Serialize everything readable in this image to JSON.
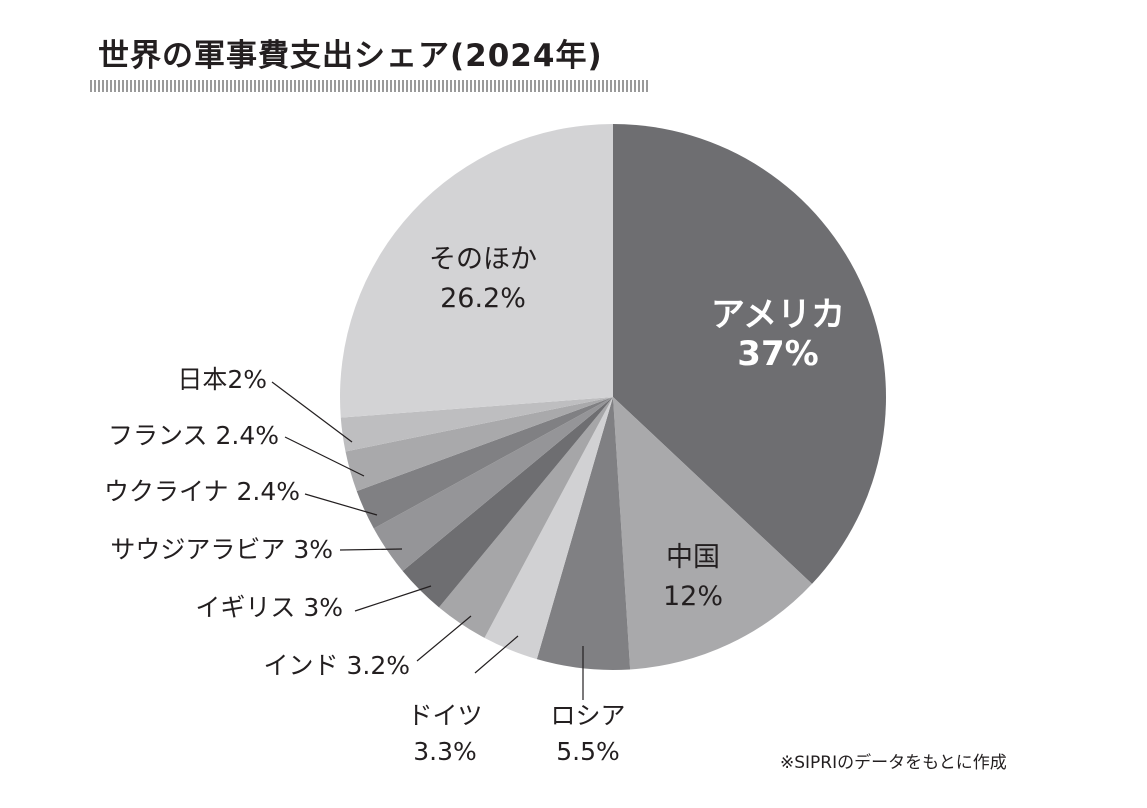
{
  "title": "世界の軍事費支出シェア(2024年)",
  "note": "※SIPRIのデータをもとに作成",
  "chart_data": {
    "type": "pie",
    "title": "世界の軍事費支出シェア(2024年)",
    "start": "top",
    "direction": "clockwise",
    "slices": [
      {
        "name": "アメリカ",
        "value": 37,
        "label": "37%",
        "color": "#6e6e71"
      },
      {
        "name": "中国",
        "value": 12,
        "label": "12%",
        "color": "#a9a9ab"
      },
      {
        "name": "ロシア",
        "value": 5.5,
        "label": "5.5%",
        "color": "#808083"
      },
      {
        "name": "ドイツ",
        "value": 3.3,
        "label": "3.3%",
        "color": "#d1d1d3"
      },
      {
        "name": "インド",
        "value": 3.2,
        "label": "3.2%",
        "color": "#a6a6a8"
      },
      {
        "name": "イギリス",
        "value": 3,
        "label": "3%",
        "color": "#6e6e71"
      },
      {
        "name": "サウジアラビア",
        "value": 3,
        "label": "3%",
        "color": "#959598"
      },
      {
        "name": "ウクライナ",
        "value": 2.4,
        "label": "2.4%",
        "color": "#808083"
      },
      {
        "name": "フランス",
        "value": 2.4,
        "label": "2.4%",
        "color": "#a9a9ab"
      },
      {
        "name": "日本",
        "value": 2,
        "label": "2%",
        "color": "#bebec0"
      },
      {
        "name": "そのほか",
        "value": 26.2,
        "label": "26.2%",
        "color": "#d3d3d5"
      }
    ]
  }
}
